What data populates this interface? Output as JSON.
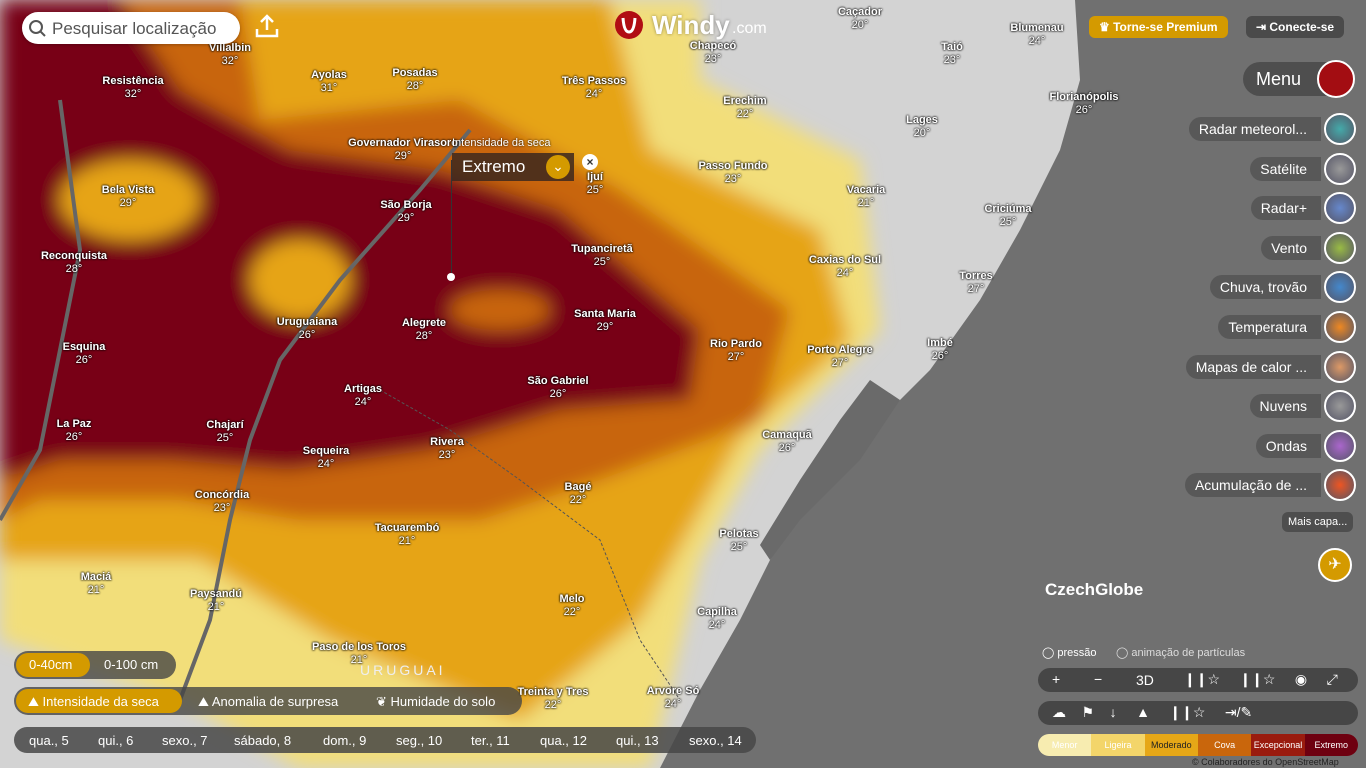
{
  "search": {
    "placeholder": "Pesquisar localização"
  },
  "logo": {
    "name": "Windy",
    "suffix": ".com"
  },
  "top_buttons": [
    "Torne-se Premium",
    "Conecte-se"
  ],
  "menu": "Menu",
  "layers": [
    "Radar meteorol...",
    "Satélite",
    "Radar+",
    "Vento",
    "Chuva, trovão",
    "Temperatura",
    "Mapas de calor ...",
    "Nuvens",
    "Ondas",
    "Acumulação de ..."
  ],
  "more_layers": "Mais capa...",
  "partner": "CzechGlobe",
  "toggles": [
    "pressão",
    "animação de partículas"
  ],
  "zoom": [
    "+",
    "−",
    "3D"
  ],
  "legend": [
    "Menor",
    "Ligeira",
    "Moderado",
    "Cova",
    "Excepcional",
    "Extremo"
  ],
  "copyright": "© Colaboradores do OpenStreetMap",
  "depth_tabs": [
    "0-40cm",
    "0-100 cm"
  ],
  "layer_tabs": [
    "Intensidade da seca",
    "Anomalia de surpresa",
    "Humidade do solo"
  ],
  "days": [
    "qua., 5",
    "qui., 6",
    "sexo., 7",
    "sábado, 8",
    "dom., 9",
    "seg., 10",
    "ter., 11",
    "qua., 12",
    "qui., 13",
    "sexo., 14"
  ],
  "picker": {
    "title": "Intensidade da seca",
    "value": "Extremo"
  },
  "country": "URUGUAI",
  "cities": [
    {
      "name": "Resistência",
      "temp": "32°"
    },
    {
      "name": "Villalbin",
      "temp": "32°"
    },
    {
      "name": "Ayolas",
      "temp": "31°"
    },
    {
      "name": "Posadas",
      "temp": "28°"
    },
    {
      "name": "Chapecó",
      "temp": "23°"
    },
    {
      "name": "Caçador",
      "temp": "20°"
    },
    {
      "name": "Blumenau",
      "temp": "24°"
    },
    {
      "name": "Taió",
      "temp": "23°"
    },
    {
      "name": "Três Passos",
      "temp": "24°"
    },
    {
      "name": "Erechim",
      "temp": "22°"
    },
    {
      "name": "Lages",
      "temp": "20°"
    },
    {
      "name": "Florianópolis",
      "temp": "26°"
    },
    {
      "name": "Governador Virasoro",
      "temp": "29°"
    },
    {
      "name": "Ijuí",
      "temp": "25°"
    },
    {
      "name": "Passo Fundo",
      "temp": "23°"
    },
    {
      "name": "Vacaria",
      "temp": "21°"
    },
    {
      "name": "Bela Vista",
      "temp": "29°"
    },
    {
      "name": "São Borja",
      "temp": "29°"
    },
    {
      "name": "Criciúma",
      "temp": "25°"
    },
    {
      "name": "Reconquista",
      "temp": "28°"
    },
    {
      "name": "Tupanciretã",
      "temp": "25°"
    },
    {
      "name": "Caxias do Sul",
      "temp": "24°"
    },
    {
      "name": "Torres",
      "temp": "27°"
    },
    {
      "name": "Uruguaiana",
      "temp": "26°"
    },
    {
      "name": "Alegrete",
      "temp": "28°"
    },
    {
      "name": "Santa Maria",
      "temp": "29°"
    },
    {
      "name": "Esquina",
      "temp": "26°"
    },
    {
      "name": "Rio Pardo",
      "temp": "27°"
    },
    {
      "name": "Porto Alegre",
      "temp": "27°"
    },
    {
      "name": "Imbé",
      "temp": "26°"
    },
    {
      "name": "Artigas",
      "temp": "24°"
    },
    {
      "name": "São Gabriel",
      "temp": "26°"
    },
    {
      "name": "La Paz",
      "temp": "26°"
    },
    {
      "name": "Chajarí",
      "temp": "25°"
    },
    {
      "name": "Rivera",
      "temp": "23°"
    },
    {
      "name": "Sequeira",
      "temp": "24°"
    },
    {
      "name": "Camaquã",
      "temp": "26°"
    },
    {
      "name": "Bagé",
      "temp": "22°"
    },
    {
      "name": "Concórdia",
      "temp": "23°"
    },
    {
      "name": "Tacuarembó",
      "temp": "21°"
    },
    {
      "name": "Pelotas",
      "temp": "25°"
    },
    {
      "name": "Maciá",
      "temp": "21°"
    },
    {
      "name": "Paysandú",
      "temp": "21°"
    },
    {
      "name": "Melo",
      "temp": "22°"
    },
    {
      "name": "Capilha",
      "temp": "24°"
    },
    {
      "name": "Paso de los Toros",
      "temp": "21°"
    },
    {
      "name": "Treinta y Tres",
      "temp": "22°"
    },
    {
      "name": "Arvore Só",
      "temp": "24°"
    }
  ]
}
